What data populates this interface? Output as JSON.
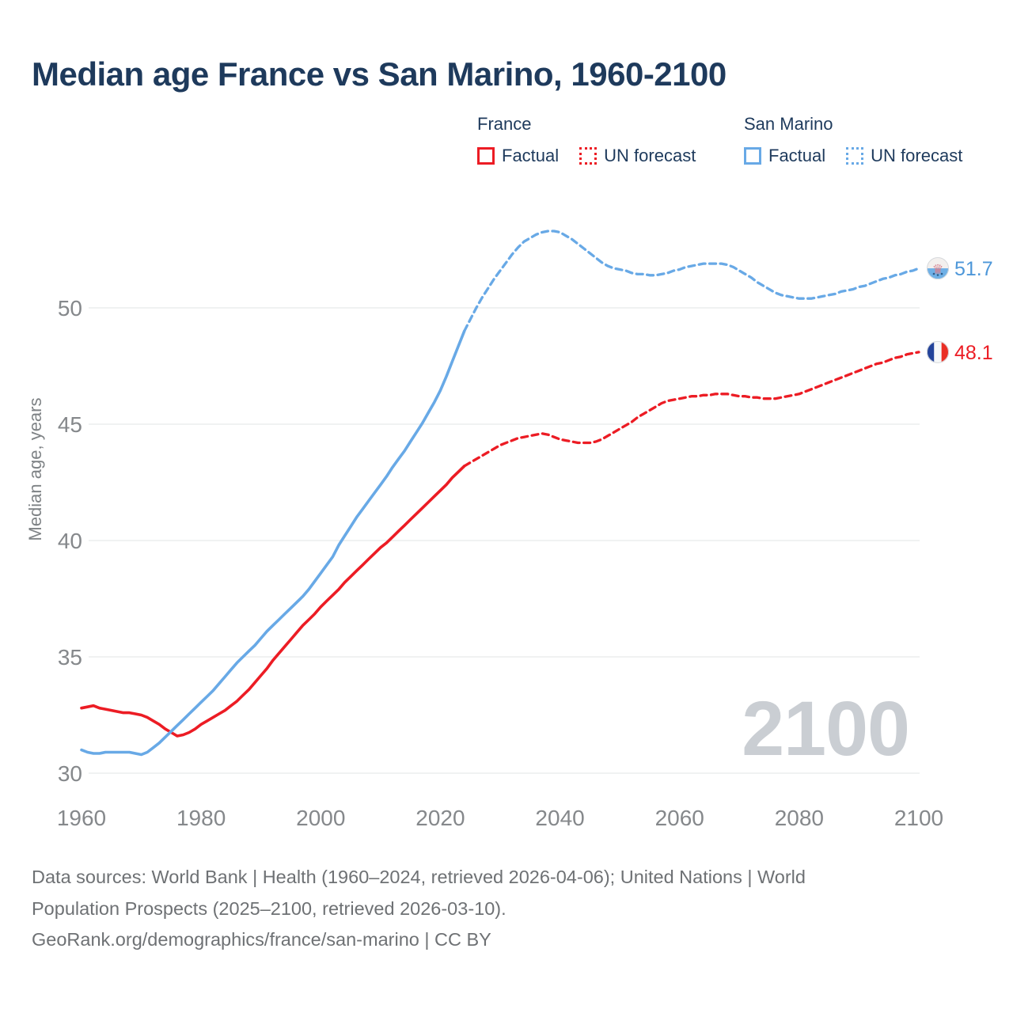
{
  "title": "Median age France vs San Marino, 1960-2100",
  "watermark": "2100",
  "legend": {
    "groups": [
      {
        "name": "France",
        "color": "#ec1c24",
        "items": [
          {
            "label": "Factual",
            "line_style": "solid"
          },
          {
            "label": "UN forecast",
            "line_style": "dotted"
          }
        ]
      },
      {
        "name": "San Marino",
        "color": "#68a9e6",
        "items": [
          {
            "label": "Factual",
            "line_style": "solid"
          },
          {
            "label": "UN forecast",
            "line_style": "dotted"
          }
        ]
      }
    ]
  },
  "footer": {
    "line1": "Data sources: World Bank | Health (1960–2024, retrieved 2026-04-06); United Nations | World",
    "line2": "Population Prospects (2025–2100, retrieved 2026-03-10).",
    "line3": "GeoRank.org/demographics/france/san-marino | CC BY"
  },
  "chart_data": {
    "type": "line",
    "title": "Median age France vs San Marino, 1960-2100",
    "xlabel": "",
    "ylabel": "Median age, years",
    "xlim": [
      1960,
      2100
    ],
    "ylim": [
      30,
      50
    ],
    "grid": true,
    "x_ticks": [
      1960,
      1980,
      2000,
      2020,
      2040,
      2060,
      2080,
      2100
    ],
    "y_ticks": [
      30,
      35,
      40,
      45,
      50
    ],
    "legend_position": "top-right",
    "series": [
      {
        "name": "France — Factual",
        "color": "#ec1c24",
        "style": "solid",
        "points": [
          [
            1960,
            32.8
          ],
          [
            1961,
            32.85
          ],
          [
            1962,
            32.9
          ],
          [
            1963,
            32.8
          ],
          [
            1964,
            32.75
          ],
          [
            1965,
            32.7
          ],
          [
            1966,
            32.65
          ],
          [
            1967,
            32.6
          ],
          [
            1968,
            32.6
          ],
          [
            1969,
            32.55
          ],
          [
            1970,
            32.5
          ],
          [
            1971,
            32.4
          ],
          [
            1972,
            32.25
          ],
          [
            1973,
            32.1
          ],
          [
            1974,
            31.9
          ],
          [
            1975,
            31.75
          ],
          [
            1976,
            31.6
          ],
          [
            1977,
            31.65
          ],
          [
            1978,
            31.75
          ],
          [
            1979,
            31.9
          ],
          [
            1980,
            32.1
          ],
          [
            1981,
            32.25
          ],
          [
            1982,
            32.4
          ],
          [
            1983,
            32.55
          ],
          [
            1984,
            32.7
          ],
          [
            1985,
            32.9
          ],
          [
            1986,
            33.1
          ],
          [
            1987,
            33.35
          ],
          [
            1988,
            33.6
          ],
          [
            1989,
            33.9
          ],
          [
            1990,
            34.2
          ],
          [
            1991,
            34.5
          ],
          [
            1992,
            34.85
          ],
          [
            1993,
            35.15
          ],
          [
            1994,
            35.45
          ],
          [
            1995,
            35.75
          ],
          [
            1996,
            36.05
          ],
          [
            1997,
            36.35
          ],
          [
            1998,
            36.6
          ],
          [
            1999,
            36.85
          ],
          [
            2000,
            37.15
          ],
          [
            2001,
            37.4
          ],
          [
            2002,
            37.65
          ],
          [
            2003,
            37.9
          ],
          [
            2004,
            38.2
          ],
          [
            2005,
            38.45
          ],
          [
            2006,
            38.7
          ],
          [
            2007,
            38.95
          ],
          [
            2008,
            39.2
          ],
          [
            2009,
            39.45
          ],
          [
            2010,
            39.7
          ],
          [
            2011,
            39.9
          ],
          [
            2012,
            40.15
          ],
          [
            2013,
            40.4
          ],
          [
            2014,
            40.65
          ],
          [
            2015,
            40.9
          ],
          [
            2016,
            41.15
          ],
          [
            2017,
            41.4
          ],
          [
            2018,
            41.65
          ],
          [
            2019,
            41.9
          ],
          [
            2020,
            42.15
          ],
          [
            2021,
            42.4
          ],
          [
            2022,
            42.7
          ],
          [
            2023,
            42.95
          ],
          [
            2024,
            43.2
          ]
        ]
      },
      {
        "name": "France — UN forecast",
        "color": "#ec1c24",
        "style": "dashed",
        "points": [
          [
            2024,
            43.2
          ],
          [
            2025,
            43.35
          ],
          [
            2026,
            43.5
          ],
          [
            2027,
            43.65
          ],
          [
            2028,
            43.8
          ],
          [
            2029,
            43.95
          ],
          [
            2030,
            44.1
          ],
          [
            2031,
            44.2
          ],
          [
            2032,
            44.3
          ],
          [
            2033,
            44.4
          ],
          [
            2034,
            44.45
          ],
          [
            2035,
            44.5
          ],
          [
            2036,
            44.55
          ],
          [
            2037,
            44.6
          ],
          [
            2038,
            44.55
          ],
          [
            2039,
            44.45
          ],
          [
            2040,
            44.35
          ],
          [
            2041,
            44.3
          ],
          [
            2042,
            44.25
          ],
          [
            2043,
            44.2
          ],
          [
            2044,
            44.2
          ],
          [
            2045,
            44.2
          ],
          [
            2046,
            44.25
          ],
          [
            2047,
            44.35
          ],
          [
            2048,
            44.5
          ],
          [
            2049,
            44.65
          ],
          [
            2050,
            44.8
          ],
          [
            2051,
            44.95
          ],
          [
            2052,
            45.1
          ],
          [
            2053,
            45.3
          ],
          [
            2054,
            45.45
          ],
          [
            2055,
            45.6
          ],
          [
            2056,
            45.75
          ],
          [
            2057,
            45.9
          ],
          [
            2058,
            46.0
          ],
          [
            2059,
            46.05
          ],
          [
            2060,
            46.1
          ],
          [
            2061,
            46.15
          ],
          [
            2062,
            46.2
          ],
          [
            2063,
            46.2
          ],
          [
            2064,
            46.25
          ],
          [
            2065,
            46.25
          ],
          [
            2066,
            46.3
          ],
          [
            2067,
            46.3
          ],
          [
            2068,
            46.3
          ],
          [
            2069,
            46.25
          ],
          [
            2070,
            46.2
          ],
          [
            2071,
            46.2
          ],
          [
            2072,
            46.15
          ],
          [
            2073,
            46.15
          ],
          [
            2074,
            46.1
          ],
          [
            2075,
            46.1
          ],
          [
            2076,
            46.1
          ],
          [
            2077,
            46.15
          ],
          [
            2078,
            46.2
          ],
          [
            2079,
            46.25
          ],
          [
            2080,
            46.3
          ],
          [
            2081,
            46.4
          ],
          [
            2082,
            46.5
          ],
          [
            2083,
            46.6
          ],
          [
            2084,
            46.7
          ],
          [
            2085,
            46.8
          ],
          [
            2086,
            46.9
          ],
          [
            2087,
            47.0
          ],
          [
            2088,
            47.1
          ],
          [
            2089,
            47.2
          ],
          [
            2090,
            47.3
          ],
          [
            2091,
            47.4
          ],
          [
            2092,
            47.5
          ],
          [
            2093,
            47.6
          ],
          [
            2094,
            47.65
          ],
          [
            2095,
            47.75
          ],
          [
            2096,
            47.85
          ],
          [
            2097,
            47.9
          ],
          [
            2098,
            48.0
          ],
          [
            2099,
            48.05
          ],
          [
            2100,
            48.1
          ]
        ]
      },
      {
        "name": "San Marino — Factual",
        "color": "#68a9e6",
        "style": "solid",
        "points": [
          [
            1960,
            31.0
          ],
          [
            1961,
            30.9
          ],
          [
            1962,
            30.85
          ],
          [
            1963,
            30.85
          ],
          [
            1964,
            30.9
          ],
          [
            1965,
            30.9
          ],
          [
            1966,
            30.9
          ],
          [
            1967,
            30.9
          ],
          [
            1968,
            30.9
          ],
          [
            1969,
            30.85
          ],
          [
            1970,
            30.8
          ],
          [
            1971,
            30.9
          ],
          [
            1972,
            31.1
          ],
          [
            1973,
            31.3
          ],
          [
            1974,
            31.55
          ],
          [
            1975,
            31.8
          ],
          [
            1976,
            32.05
          ],
          [
            1977,
            32.3
          ],
          [
            1978,
            32.55
          ],
          [
            1979,
            32.8
          ],
          [
            1980,
            33.05
          ],
          [
            1981,
            33.3
          ],
          [
            1982,
            33.55
          ],
          [
            1983,
            33.85
          ],
          [
            1984,
            34.15
          ],
          [
            1985,
            34.45
          ],
          [
            1986,
            34.75
          ],
          [
            1987,
            35.0
          ],
          [
            1988,
            35.25
          ],
          [
            1989,
            35.5
          ],
          [
            1990,
            35.8
          ],
          [
            1991,
            36.1
          ],
          [
            1992,
            36.35
          ],
          [
            1993,
            36.6
          ],
          [
            1994,
            36.85
          ],
          [
            1995,
            37.1
          ],
          [
            1996,
            37.35
          ],
          [
            1997,
            37.6
          ],
          [
            1998,
            37.9
          ],
          [
            1999,
            38.25
          ],
          [
            2000,
            38.6
          ],
          [
            2001,
            38.95
          ],
          [
            2002,
            39.3
          ],
          [
            2003,
            39.8
          ],
          [
            2004,
            40.2
          ],
          [
            2005,
            40.6
          ],
          [
            2006,
            41.0
          ],
          [
            2007,
            41.35
          ],
          [
            2008,
            41.7
          ],
          [
            2009,
            42.05
          ],
          [
            2010,
            42.4
          ],
          [
            2011,
            42.75
          ],
          [
            2012,
            43.15
          ],
          [
            2013,
            43.5
          ],
          [
            2014,
            43.85
          ],
          [
            2015,
            44.25
          ],
          [
            2016,
            44.65
          ],
          [
            2017,
            45.05
          ],
          [
            2018,
            45.5
          ],
          [
            2019,
            45.95
          ],
          [
            2020,
            46.45
          ],
          [
            2021,
            47.05
          ],
          [
            2022,
            47.7
          ],
          [
            2023,
            48.35
          ],
          [
            2024,
            49.0
          ]
        ]
      },
      {
        "name": "San Marino — UN forecast",
        "color": "#68a9e6",
        "style": "dashed",
        "points": [
          [
            2024,
            49.0
          ],
          [
            2025,
            49.5
          ],
          [
            2026,
            50.0
          ],
          [
            2027,
            50.45
          ],
          [
            2028,
            50.85
          ],
          [
            2029,
            51.25
          ],
          [
            2030,
            51.6
          ],
          [
            2031,
            51.95
          ],
          [
            2032,
            52.3
          ],
          [
            2033,
            52.6
          ],
          [
            2034,
            52.85
          ],
          [
            2035,
            53.0
          ],
          [
            2036,
            53.15
          ],
          [
            2037,
            53.25
          ],
          [
            2038,
            53.3
          ],
          [
            2039,
            53.3
          ],
          [
            2040,
            53.25
          ],
          [
            2041,
            53.1
          ],
          [
            2042,
            52.95
          ],
          [
            2043,
            52.75
          ],
          [
            2044,
            52.55
          ],
          [
            2045,
            52.35
          ],
          [
            2046,
            52.15
          ],
          [
            2047,
            51.95
          ],
          [
            2048,
            51.8
          ],
          [
            2049,
            51.7
          ],
          [
            2050,
            51.65
          ],
          [
            2051,
            51.6
          ],
          [
            2052,
            51.5
          ],
          [
            2053,
            51.45
          ],
          [
            2054,
            51.45
          ],
          [
            2055,
            51.4
          ],
          [
            2056,
            51.4
          ],
          [
            2057,
            51.45
          ],
          [
            2058,
            51.5
          ],
          [
            2059,
            51.6
          ],
          [
            2060,
            51.65
          ],
          [
            2061,
            51.75
          ],
          [
            2062,
            51.8
          ],
          [
            2063,
            51.85
          ],
          [
            2064,
            51.9
          ],
          [
            2065,
            51.9
          ],
          [
            2066,
            51.9
          ],
          [
            2067,
            51.9
          ],
          [
            2068,
            51.85
          ],
          [
            2069,
            51.75
          ],
          [
            2070,
            51.6
          ],
          [
            2071,
            51.45
          ],
          [
            2072,
            51.3
          ],
          [
            2073,
            51.1
          ],
          [
            2074,
            50.95
          ],
          [
            2075,
            50.8
          ],
          [
            2076,
            50.65
          ],
          [
            2077,
            50.55
          ],
          [
            2078,
            50.5
          ],
          [
            2079,
            50.45
          ],
          [
            2080,
            50.4
          ],
          [
            2081,
            50.4
          ],
          [
            2082,
            50.4
          ],
          [
            2083,
            50.45
          ],
          [
            2084,
            50.5
          ],
          [
            2085,
            50.55
          ],
          [
            2086,
            50.6
          ],
          [
            2087,
            50.7
          ],
          [
            2088,
            50.75
          ],
          [
            2089,
            50.8
          ],
          [
            2090,
            50.9
          ],
          [
            2091,
            50.95
          ],
          [
            2092,
            51.05
          ],
          [
            2093,
            51.15
          ],
          [
            2094,
            51.25
          ],
          [
            2095,
            51.3
          ],
          [
            2096,
            51.4
          ],
          [
            2097,
            51.45
          ],
          [
            2098,
            51.55
          ],
          [
            2099,
            51.6
          ],
          [
            2100,
            51.7
          ]
        ]
      },
      {
        "name": "end-markers",
        "style": "markers",
        "color": "",
        "points": []
      }
    ],
    "end_markers": [
      {
        "series": "San Marino",
        "flag": "san-marino",
        "value": 51.7,
        "label": "51.7",
        "label_color": "#4d97d9"
      },
      {
        "series": "France",
        "flag": "france",
        "value": 48.1,
        "label": "48.1",
        "label_color": "#ec1c24"
      }
    ]
  }
}
